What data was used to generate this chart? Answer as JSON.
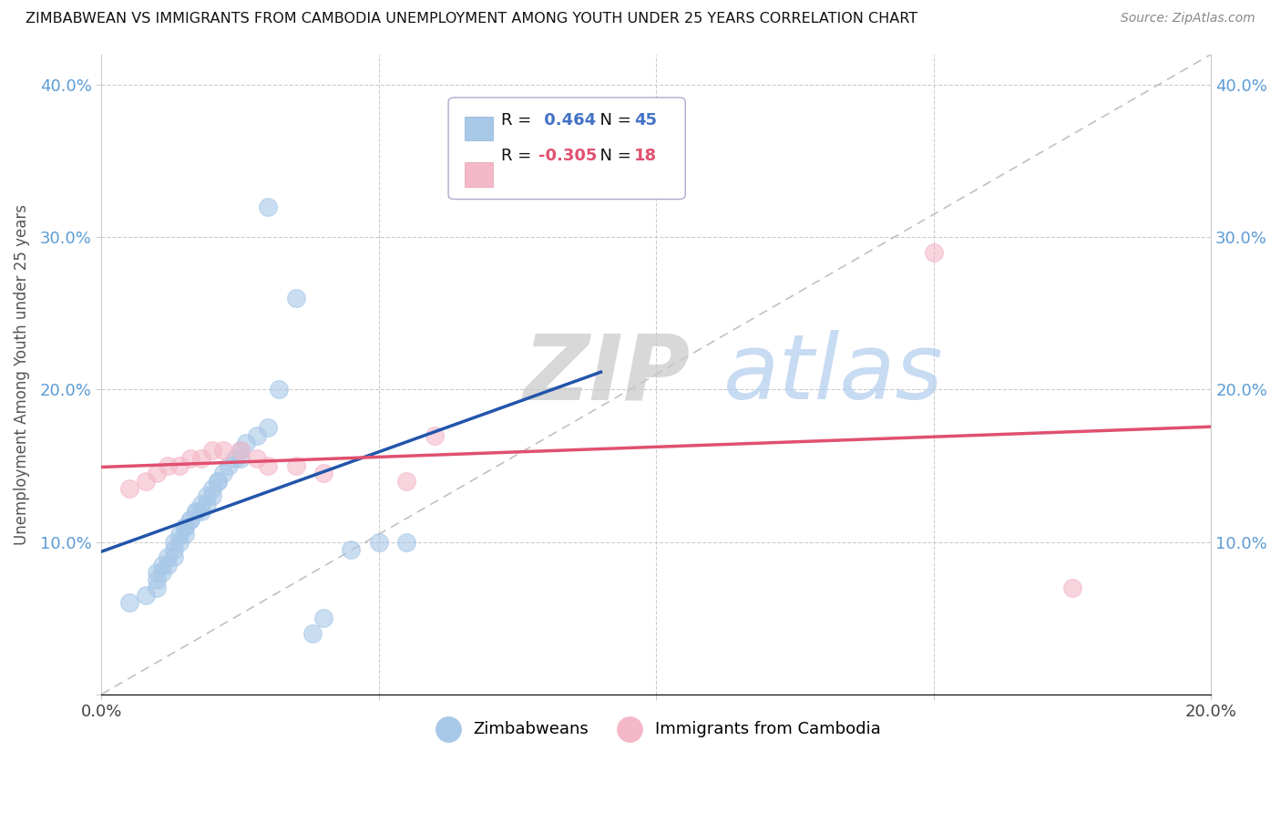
{
  "title": "ZIMBABWEAN VS IMMIGRANTS FROM CAMBODIA UNEMPLOYMENT AMONG YOUTH UNDER 25 YEARS CORRELATION CHART",
  "source": "Source: ZipAtlas.com",
  "ylabel": "Unemployment Among Youth under 25 years",
  "xlim": [
    0.0,
    0.2
  ],
  "ylim": [
    0.0,
    0.42
  ],
  "legend_labels": [
    "Zimbabweans",
    "Immigrants from Cambodia"
  ],
  "zim_color": "#a8c8e8",
  "cam_color": "#f4b8c8",
  "zim_line_color": "#2255aa",
  "cam_line_color": "#e05070",
  "diag_color": "#bbbbbb",
  "R_zim": "0.464",
  "N_zim": "45",
  "R_cam": "-0.305",
  "N_cam": "18",
  "zim_x": [
    0.005,
    0.008,
    0.01,
    0.01,
    0.01,
    0.011,
    0.011,
    0.012,
    0.012,
    0.013,
    0.013,
    0.013,
    0.014,
    0.014,
    0.015,
    0.015,
    0.015,
    0.016,
    0.016,
    0.017,
    0.017,
    0.018,
    0.018,
    0.019,
    0.019,
    0.02,
    0.02,
    0.021,
    0.021,
    0.022,
    0.023,
    0.024,
    0.025,
    0.025,
    0.026,
    0.028,
    0.03,
    0.032,
    0.035,
    0.038,
    0.04,
    0.045,
    0.05,
    0.055,
    0.03
  ],
  "zim_y": [
    0.06,
    0.065,
    0.07,
    0.075,
    0.08,
    0.08,
    0.085,
    0.085,
    0.09,
    0.09,
    0.095,
    0.1,
    0.1,
    0.105,
    0.105,
    0.11,
    0.11,
    0.115,
    0.115,
    0.12,
    0.12,
    0.12,
    0.125,
    0.125,
    0.13,
    0.13,
    0.135,
    0.14,
    0.14,
    0.145,
    0.15,
    0.155,
    0.155,
    0.16,
    0.165,
    0.17,
    0.175,
    0.2,
    0.26,
    0.04,
    0.05,
    0.095,
    0.1,
    0.1,
    0.32
  ],
  "cam_x": [
    0.005,
    0.008,
    0.01,
    0.012,
    0.014,
    0.016,
    0.018,
    0.02,
    0.022,
    0.025,
    0.028,
    0.03,
    0.035,
    0.04,
    0.055,
    0.06,
    0.15,
    0.175
  ],
  "cam_y": [
    0.135,
    0.14,
    0.145,
    0.15,
    0.15,
    0.155,
    0.155,
    0.16,
    0.16,
    0.16,
    0.155,
    0.15,
    0.15,
    0.145,
    0.14,
    0.17,
    0.29,
    0.07
  ]
}
